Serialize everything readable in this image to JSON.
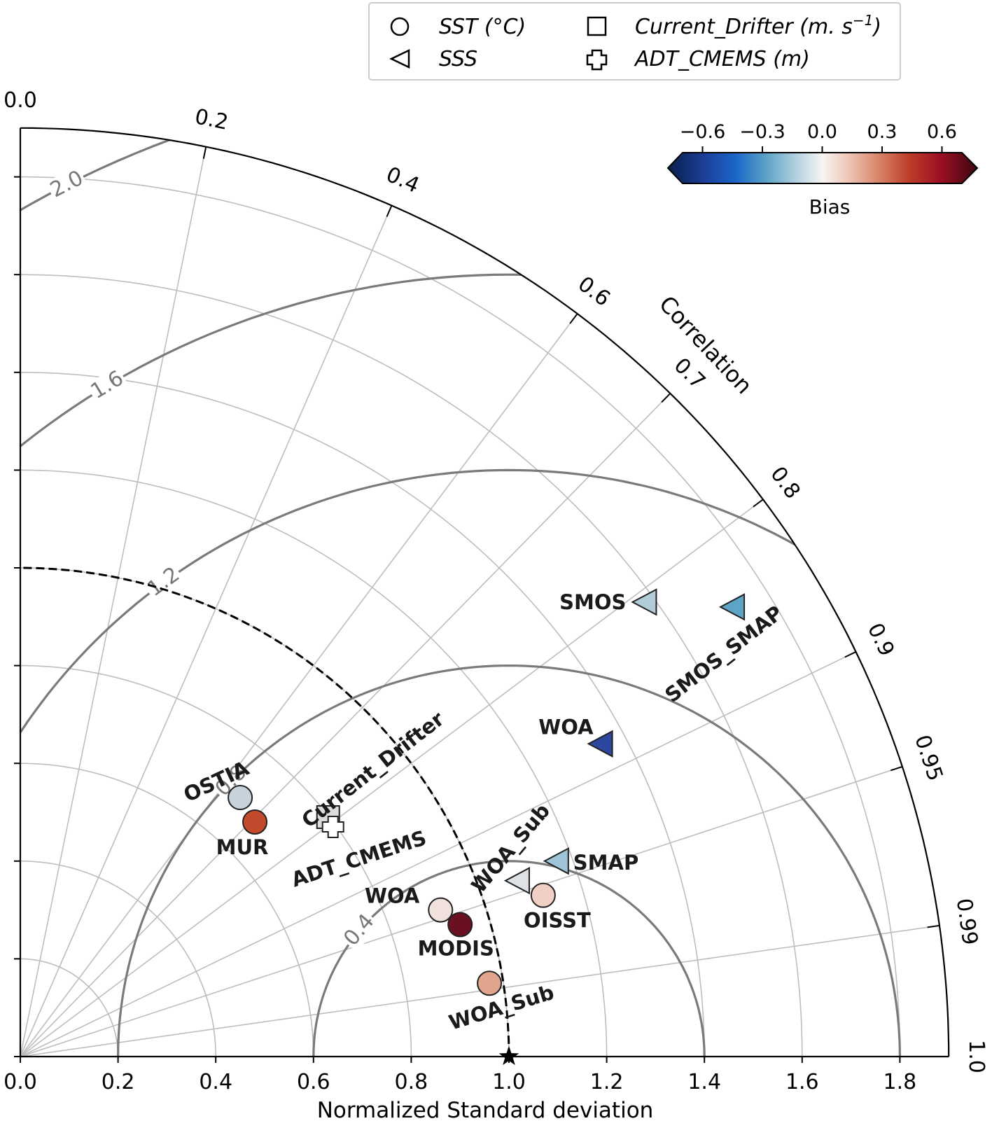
{
  "chart_data": {
    "type": "scatter",
    "subtype": "taylor-diagram",
    "xlabel": "Normalized Standard deviation",
    "correlation_label": "Correlation",
    "std_range": [
      0,
      1.9
    ],
    "std_ticks": [
      "0.0",
      "0.2",
      "0.4",
      "0.6",
      "0.8",
      "1.0",
      "1.2",
      "1.4",
      "1.6",
      "1.8"
    ],
    "std_tick_values": [
      0,
      0.2,
      0.4,
      0.6,
      0.8,
      1.0,
      1.2,
      1.4,
      1.6,
      1.8
    ],
    "correlation_ticks": [
      {
        "value": 0.0,
        "label": "0.0"
      },
      {
        "value": 0.2,
        "label": "0.2"
      },
      {
        "value": 0.4,
        "label": "0.4"
      },
      {
        "value": 0.6,
        "label": "0.6"
      },
      {
        "value": 0.7,
        "label": "0.7"
      },
      {
        "value": 0.8,
        "label": "0.8"
      },
      {
        "value": 0.9,
        "label": "0.9"
      },
      {
        "value": 0.95,
        "label": "0.95"
      },
      {
        "value": 0.99,
        "label": "0.99"
      },
      {
        "value": 1.0,
        "label": "1.0"
      }
    ],
    "rms_contours": [
      {
        "value": 0.4,
        "label": "0.4"
      },
      {
        "value": 0.8,
        "label": "0.8"
      },
      {
        "value": 1.2,
        "label": "1.2"
      },
      {
        "value": 1.6,
        "label": "1.6"
      },
      {
        "value": 2.0,
        "label": "2.0"
      }
    ],
    "reference_std": 1.0,
    "colorbar": {
      "label": "Bias",
      "ticks": [
        "−0.6",
        "−0.3",
        "0.0",
        "0.3",
        "0.6"
      ],
      "tick_values": [
        -0.6,
        -0.3,
        0,
        0.3,
        0.6
      ],
      "range": [
        -0.7,
        0.7
      ],
      "colormap": "RdBu_r"
    },
    "legend": {
      "placement": "top",
      "entries": [
        {
          "marker": "circle",
          "label": "SST (°C)"
        },
        {
          "marker": "square",
          "label": "Current_Drifter (m. s",
          "superscript": "−1",
          "suffix": ")"
        },
        {
          "marker": "triangle-left",
          "label": "SSS"
        },
        {
          "marker": "plus",
          "label": "ADT_CMEMS (m)"
        }
      ]
    },
    "points": [
      {
        "name": "OSTIA",
        "group": "SST",
        "marker": "circle",
        "x": 0.45,
        "y": 0.53,
        "color": "#c7d3dc"
      },
      {
        "name": "MUR",
        "group": "SST",
        "marker": "circle",
        "x": 0.48,
        "y": 0.48,
        "color": "#c24a2d"
      },
      {
        "name": "WOA",
        "group": "SST",
        "marker": "circle",
        "x": 0.86,
        "y": 0.3,
        "color": "#f1e1dc"
      },
      {
        "name": "MODIS",
        "group": "SST",
        "marker": "circle",
        "x": 0.9,
        "y": 0.27,
        "color": "#6a1020"
      },
      {
        "name": "WOA_Sub",
        "group": "SST",
        "marker": "circle",
        "x": 0.96,
        "y": 0.15,
        "color": "#e0a58c"
      },
      {
        "name": "OISST",
        "group": "SST",
        "marker": "circle",
        "x": 1.07,
        "y": 0.33,
        "color": "#f2cfc4"
      },
      {
        "name": "SMOS",
        "group": "SSS",
        "marker": "triangle-left",
        "x": 1.28,
        "y": 0.93,
        "color": "#b2cbd8"
      },
      {
        "name": "SMOS_SMAP",
        "group": "SSS",
        "marker": "triangle-left",
        "x": 1.46,
        "y": 0.92,
        "color": "#5ea4c6"
      },
      {
        "name": "WOA",
        "group": "SSS",
        "marker": "triangle-left",
        "x": 1.19,
        "y": 0.64,
        "color": "#2d47a0"
      },
      {
        "name": "WOA_Sub",
        "group": "SSS",
        "marker": "triangle-left",
        "x": 1.02,
        "y": 0.36,
        "color": "#dde2e6"
      },
      {
        "name": "SMAP",
        "group": "SSS",
        "marker": "triangle-left",
        "x": 1.1,
        "y": 0.4,
        "color": "#9fc3d9"
      },
      {
        "name": "Current_Drifter",
        "group": "Current",
        "marker": "square",
        "x": 0.63,
        "y": 0.49,
        "color": "#dcdcdc"
      },
      {
        "name": "ADT_CMEMS",
        "group": "ADT",
        "marker": "plus",
        "x": 0.64,
        "y": 0.47,
        "color": "#ffffff"
      }
    ]
  }
}
